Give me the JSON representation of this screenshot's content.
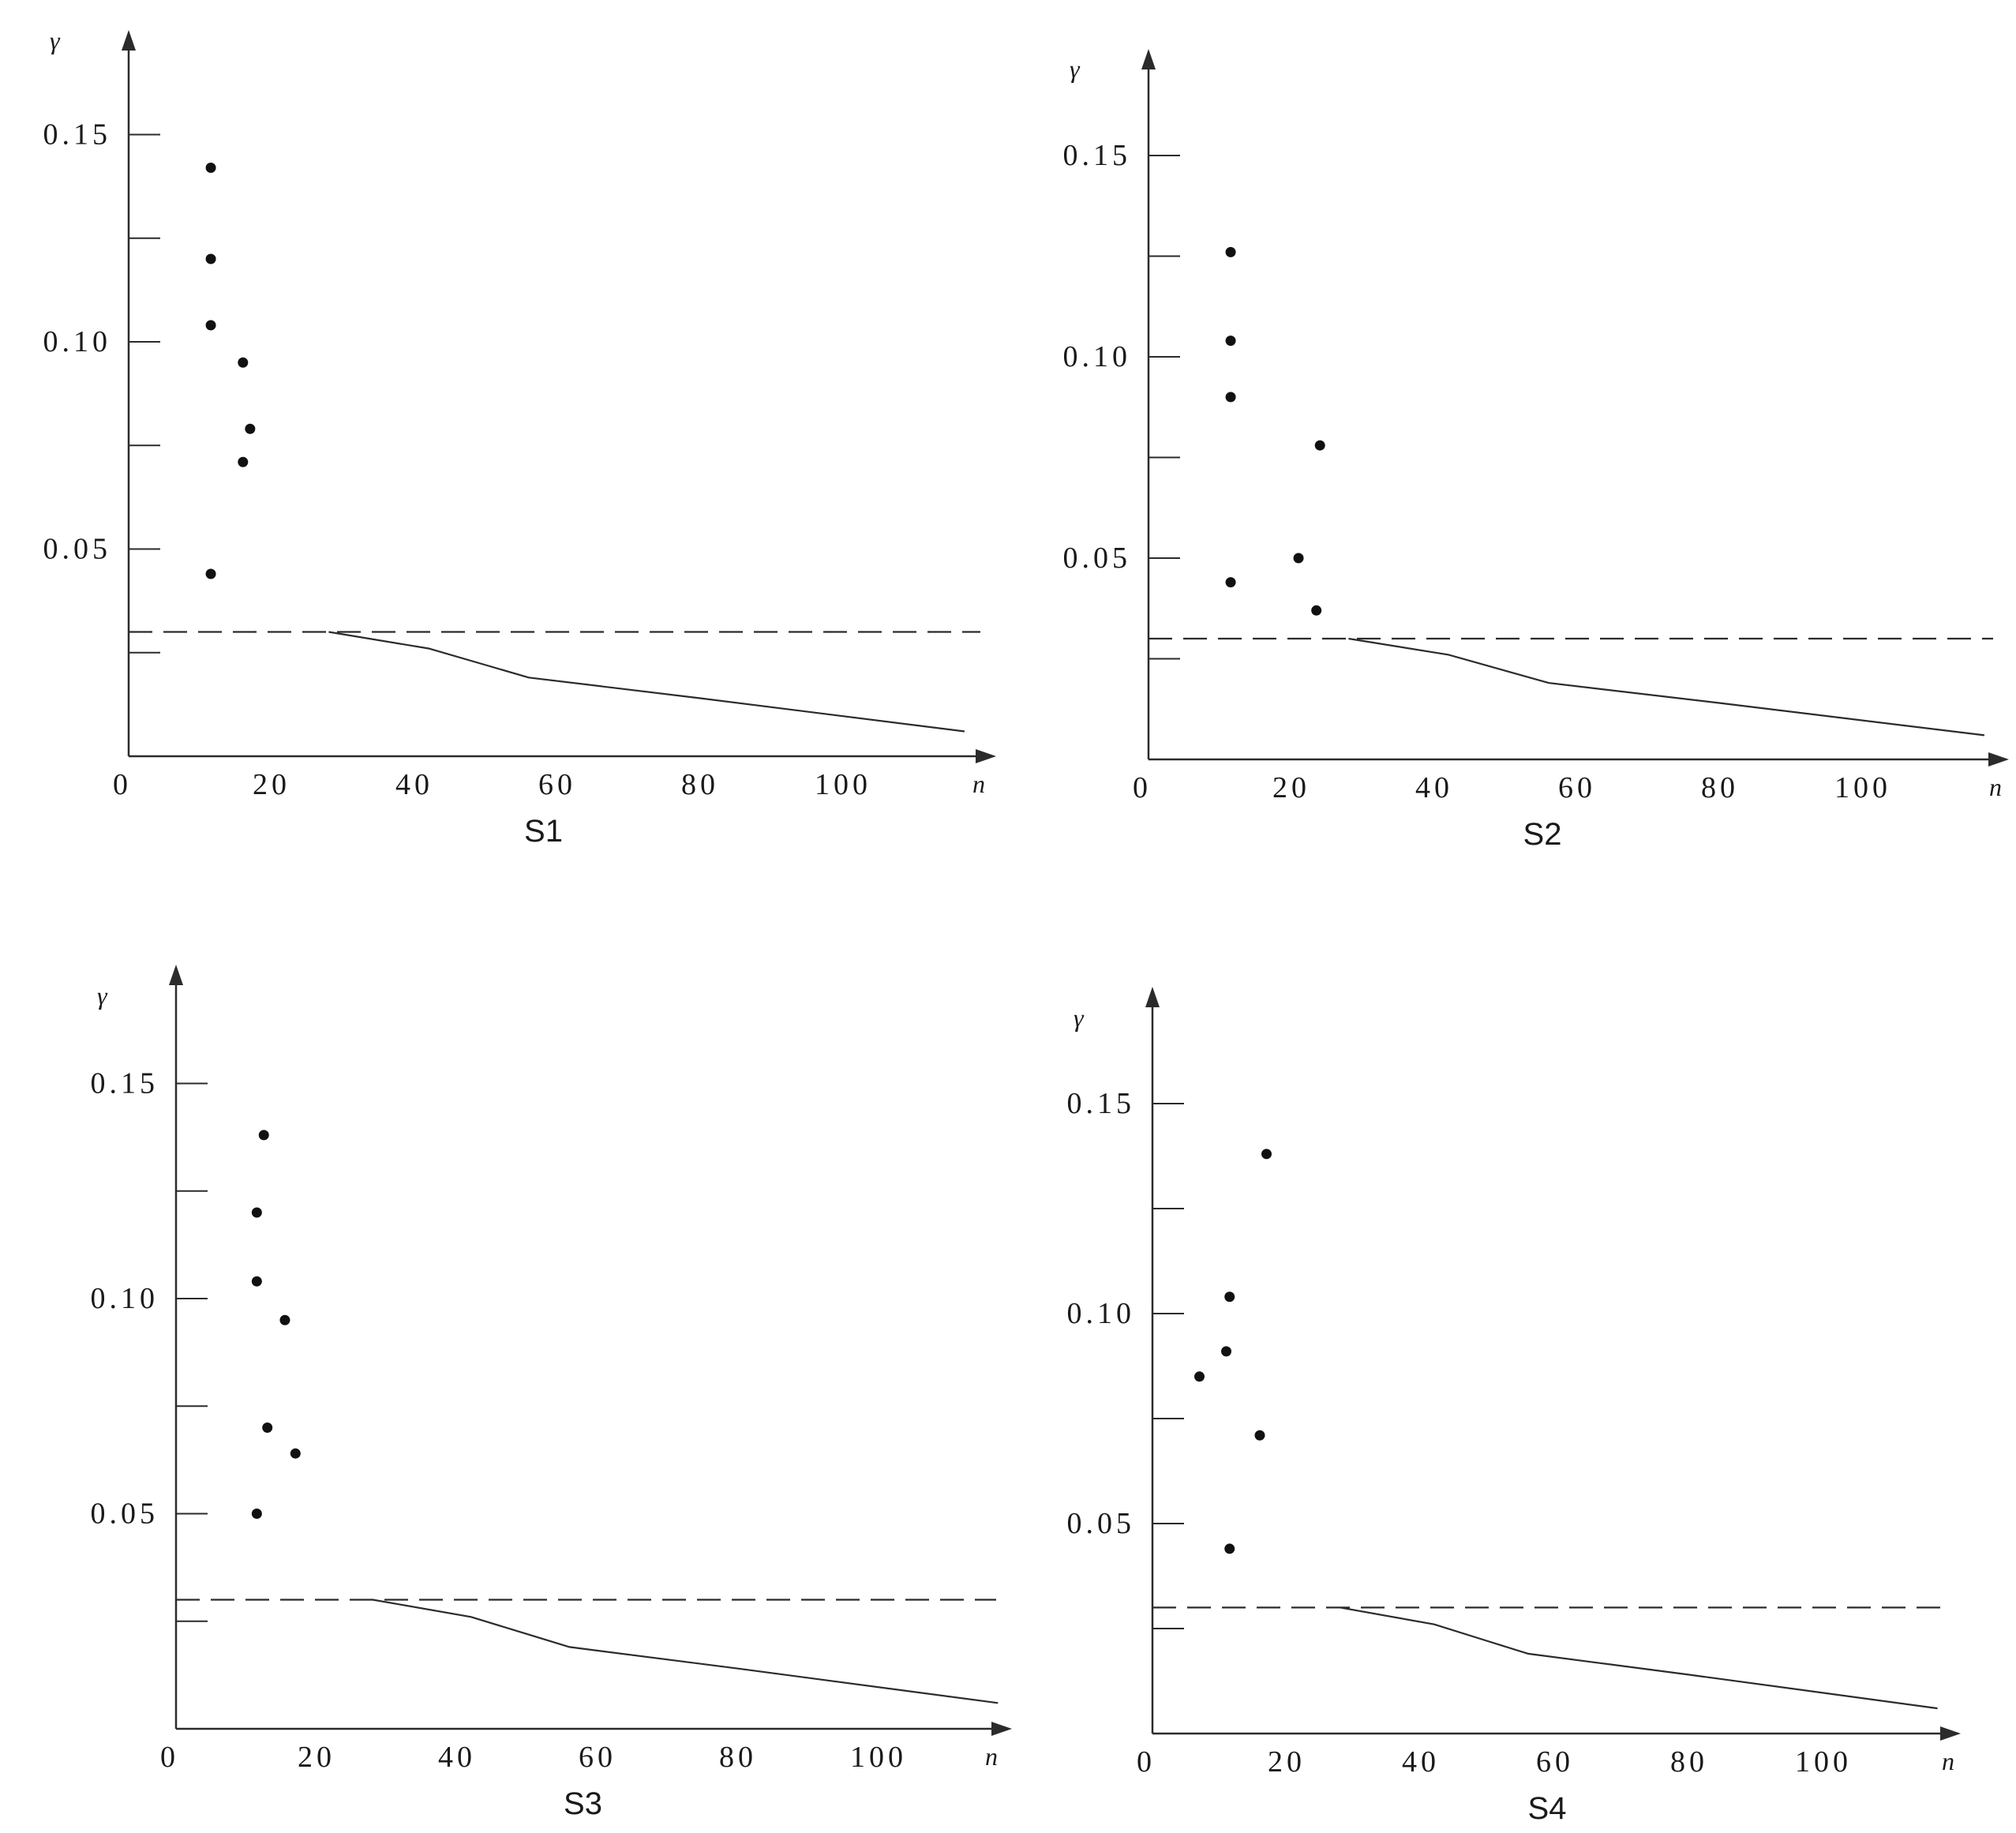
{
  "chart_data": [
    {
      "type": "scatter",
      "title": "S1",
      "xlabel": "n",
      "ylabel": "γ",
      "xlim": [
        0,
        120
      ],
      "ylim": [
        0,
        0.175
      ],
      "xticks": [
        0,
        20,
        40,
        60,
        80,
        100
      ],
      "xtick_labels": [
        "0",
        "20",
        "40",
        "60",
        "80",
        "100"
      ],
      "yticks": [
        0.025,
        0.05,
        0.075,
        0.1,
        0.125,
        0.15
      ],
      "ytick_labels": [
        "",
        "0.05",
        "",
        "0.10",
        "",
        "0.15"
      ],
      "points": [
        {
          "x": 11.5,
          "y": 0.142
        },
        {
          "x": 11.5,
          "y": 0.12
        },
        {
          "x": 11.5,
          "y": 0.104
        },
        {
          "x": 16,
          "y": 0.095
        },
        {
          "x": 17,
          "y": 0.079
        },
        {
          "x": 16,
          "y": 0.071
        },
        {
          "x": 11.5,
          "y": 0.044
        }
      ],
      "threshold": 0.03,
      "curve": [
        {
          "x": 28,
          "y": 0.03
        },
        {
          "x": 42,
          "y": 0.026
        },
        {
          "x": 50,
          "y": 0.022
        },
        {
          "x": 56,
          "y": 0.019
        },
        {
          "x": 80,
          "y": 0.014
        },
        {
          "x": 117,
          "y": 0.006
        }
      ]
    },
    {
      "type": "scatter",
      "title": "S2",
      "xlabel": "n",
      "ylabel": "γ",
      "xlim": [
        0,
        120
      ],
      "ylim": [
        0,
        0.175
      ],
      "xticks": [
        0,
        20,
        40,
        60,
        80,
        100
      ],
      "xtick_labels": [
        "0",
        "20",
        "40",
        "60",
        "80",
        "100"
      ],
      "yticks": [
        0.025,
        0.05,
        0.075,
        0.1,
        0.125,
        0.15
      ],
      "ytick_labels": [
        "",
        "0.05",
        "",
        "0.10",
        "",
        "0.15"
      ],
      "points": [
        {
          "x": 11.5,
          "y": 0.126
        },
        {
          "x": 11.5,
          "y": 0.104
        },
        {
          "x": 11.5,
          "y": 0.09
        },
        {
          "x": 24,
          "y": 0.078
        },
        {
          "x": 21,
          "y": 0.05
        },
        {
          "x": 11.5,
          "y": 0.044
        },
        {
          "x": 23.5,
          "y": 0.037
        }
      ],
      "threshold": 0.03,
      "curve": [
        {
          "x": 28,
          "y": 0.03
        },
        {
          "x": 42,
          "y": 0.026
        },
        {
          "x": 50,
          "y": 0.022
        },
        {
          "x": 56,
          "y": 0.019
        },
        {
          "x": 80,
          "y": 0.014
        },
        {
          "x": 117,
          "y": 0.006
        }
      ]
    },
    {
      "type": "scatter",
      "title": "S3",
      "xlabel": "n",
      "ylabel": "γ",
      "xlim": [
        0,
        120
      ],
      "ylim": [
        0,
        0.175
      ],
      "xticks": [
        0,
        20,
        40,
        60,
        80,
        100
      ],
      "xtick_labels": [
        "0",
        "20",
        "40",
        "60",
        "80",
        "100"
      ],
      "yticks": [
        0.025,
        0.05,
        0.075,
        0.1,
        0.125,
        0.15
      ],
      "ytick_labels": [
        "",
        "0.05",
        "",
        "0.10",
        "",
        "0.15"
      ],
      "points": [
        {
          "x": 12.5,
          "y": 0.138
        },
        {
          "x": 11.5,
          "y": 0.12
        },
        {
          "x": 11.5,
          "y": 0.104
        },
        {
          "x": 15.5,
          "y": 0.095
        },
        {
          "x": 13,
          "y": 0.07
        },
        {
          "x": 17,
          "y": 0.064
        },
        {
          "x": 11.5,
          "y": 0.05
        }
      ],
      "threshold": 0.03,
      "curve": [
        {
          "x": 28,
          "y": 0.03
        },
        {
          "x": 42,
          "y": 0.026
        },
        {
          "x": 50,
          "y": 0.022
        },
        {
          "x": 56,
          "y": 0.019
        },
        {
          "x": 80,
          "y": 0.014
        },
        {
          "x": 117,
          "y": 0.006
        }
      ]
    },
    {
      "type": "scatter",
      "title": "S4",
      "xlabel": "n",
      "ylabel": "γ",
      "xlim": [
        0,
        120
      ],
      "ylim": [
        0,
        0.175
      ],
      "xticks": [
        0,
        20,
        40,
        60,
        80,
        100
      ],
      "xtick_labels": [
        "0",
        "20",
        "40",
        "60",
        "80",
        "100"
      ],
      "yticks": [
        0.025,
        0.05,
        0.075,
        0.1,
        0.125,
        0.15
      ],
      "ytick_labels": [
        "",
        "0.05",
        "",
        "0.10",
        "",
        "0.15"
      ],
      "points": [
        {
          "x": 17,
          "y": 0.138
        },
        {
          "x": 11.5,
          "y": 0.104
        },
        {
          "x": 11,
          "y": 0.091
        },
        {
          "x": 7,
          "y": 0.085
        },
        {
          "x": 16,
          "y": 0.071
        },
        {
          "x": 11.5,
          "y": 0.044
        }
      ],
      "threshold": 0.03,
      "curve": [
        {
          "x": 28,
          "y": 0.03
        },
        {
          "x": 42,
          "y": 0.026
        },
        {
          "x": 50,
          "y": 0.022
        },
        {
          "x": 56,
          "y": 0.019
        },
        {
          "x": 80,
          "y": 0.014
        },
        {
          "x": 117,
          "y": 0.006
        }
      ]
    }
  ]
}
